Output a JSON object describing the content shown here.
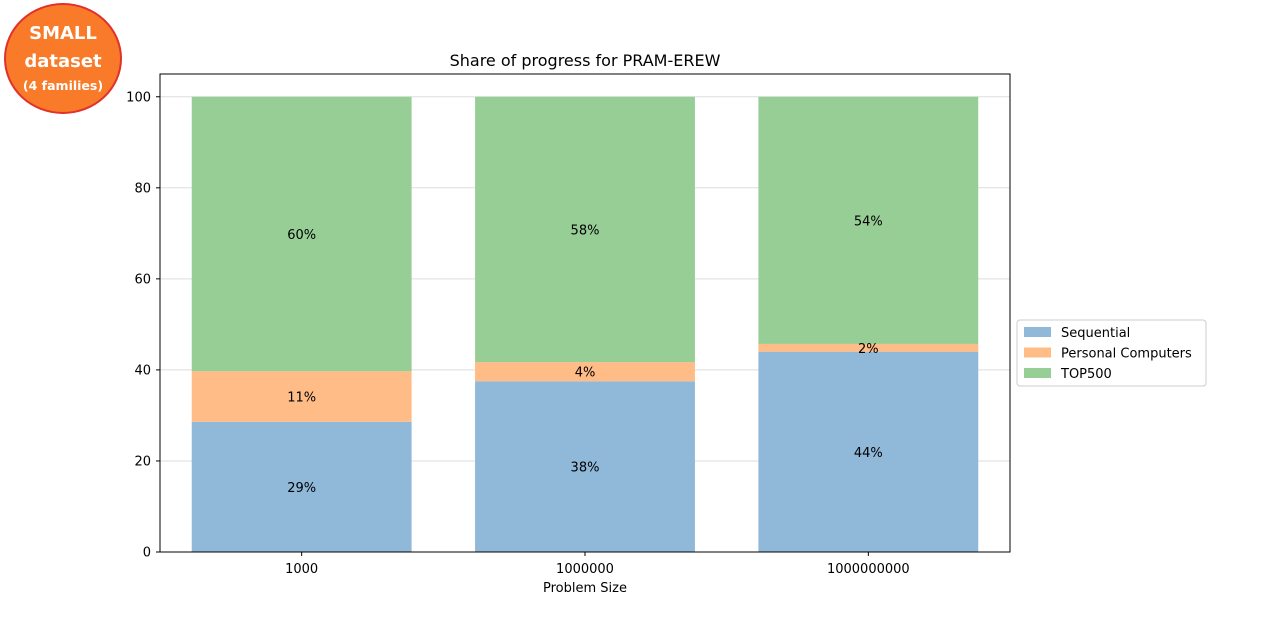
{
  "badge": {
    "line1": "SMALL",
    "line2": "dataset",
    "line3": "(4 families)"
  },
  "chart_data": {
    "type": "bar",
    "stacked": true,
    "title": "Share of progress for PRAM-EREW",
    "xlabel": "Problem Size",
    "ylabel": "",
    "ylim": [
      0,
      105
    ],
    "yticks": [
      0,
      20,
      40,
      60,
      80,
      100
    ],
    "categories": [
      "1000",
      "1000000",
      "1000000000"
    ],
    "grid": "y",
    "legend_position": "right",
    "series": [
      {
        "name": "Sequential",
        "values": [
          28.6,
          37.5,
          44.0
        ],
        "labels": [
          "29%",
          "38%",
          "44%"
        ],
        "color": "#8fb8d9"
      },
      {
        "name": "Personal Computers",
        "values": [
          11.1,
          4.2,
          1.7
        ],
        "labels": [
          "11%",
          "4%",
          "2%"
        ],
        "color": "#ffbc86"
      },
      {
        "name": "TOP500",
        "values": [
          60.3,
          58.3,
          54.3
        ],
        "labels": [
          "60%",
          "58%",
          "54%"
        ],
        "color": "#97ce95"
      }
    ]
  }
}
